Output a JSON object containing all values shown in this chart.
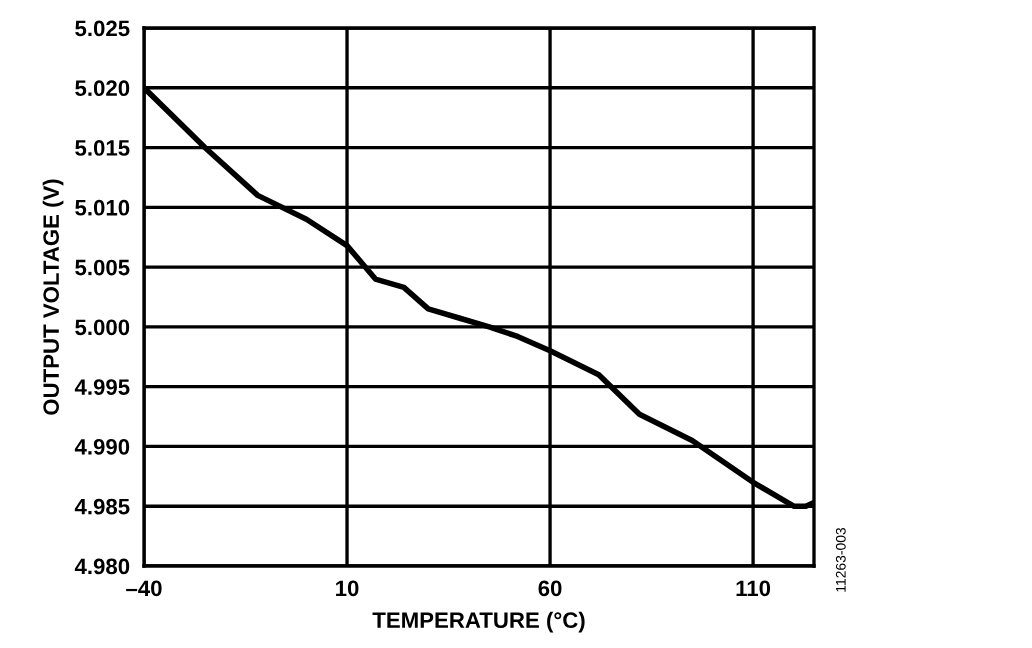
{
  "chart_data": {
    "type": "line",
    "xlabel": "TEMPERATURE (°C)",
    "ylabel": "OUTPUT VOLTAGE (V)",
    "x": [
      -40,
      -25,
      -12,
      0,
      10,
      17,
      24,
      30,
      38,
      45,
      52,
      60,
      72,
      82,
      95,
      110,
      120,
      123,
      125
    ],
    "series": [
      {
        "color": "#000000",
        "values": [
          5.02,
          5.015,
          5.011,
          5.009,
          5.0068,
          5.004,
          5.0033,
          5.0015,
          5.0007,
          5.0,
          4.9992,
          4.998,
          4.996,
          4.9927,
          4.9905,
          4.987,
          4.985,
          4.985,
          4.9853
        ]
      }
    ],
    "xlim": [
      -40,
      125
    ],
    "xticks": [
      {
        "value": -40,
        "label": "–40"
      },
      10,
      60,
      110
    ],
    "ylim": [
      4.98,
      5.025
    ],
    "yticks": [
      {
        "value": 4.98,
        "label": "4.980"
      },
      {
        "value": 4.985,
        "label": "4.985"
      },
      {
        "value": 4.99,
        "label": "4.990"
      },
      {
        "value": 4.995,
        "label": "4.995"
      },
      {
        "value": 5.0,
        "label": "5.000"
      },
      {
        "value": 5.005,
        "label": "5.005"
      },
      {
        "value": 5.01,
        "label": "5.010"
      },
      {
        "value": 5.015,
        "label": "5.015"
      },
      {
        "value": 5.02,
        "label": "5.020"
      },
      {
        "value": 5.025,
        "label": "5.025"
      }
    ],
    "grid": true,
    "annotations": [
      "11263-003"
    ]
  }
}
